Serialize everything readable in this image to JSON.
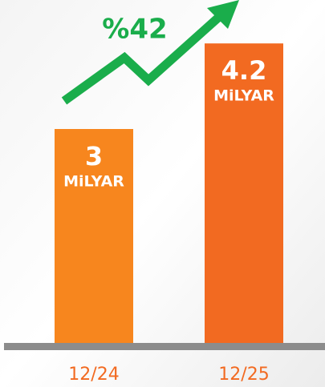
{
  "chart_data": {
    "type": "bar",
    "categories": [
      "12/24",
      "12/25"
    ],
    "values": [
      3,
      4.2
    ],
    "colors": [
      "#f7861e",
      "#f26a21"
    ],
    "unit": "MiLYAR",
    "annotation": "%42",
    "annotation_color": "#1aad4b"
  }
}
